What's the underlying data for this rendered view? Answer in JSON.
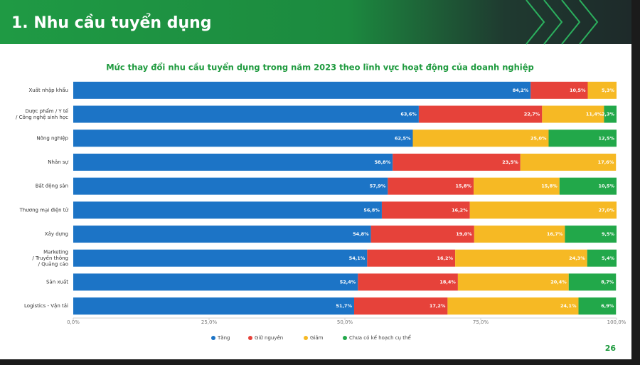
{
  "header": {
    "title": "1. Nhu cầu tuyển dụng"
  },
  "page_number": "26",
  "chart_data": {
    "type": "stacked-bar-horizontal",
    "title": "Mức thay đổi nhu cầu tuyển dụng trong năm 2023 theo lĩnh vực hoạt động của doanh nghiệp",
    "categories": [
      [
        "Xuất nhập khẩu"
      ],
      [
        "Dược phẩm / Y tế",
        "/ Công nghệ sinh học"
      ],
      [
        "Nông nghiệp"
      ],
      [
        "Nhân sự"
      ],
      [
        "Bất động sản"
      ],
      [
        "Thương mại điện tử"
      ],
      [
        "Xây dựng"
      ],
      [
        "Marketing",
        "/ Truyền thông",
        "/ Quảng cáo"
      ],
      [
        "Sản xuất"
      ],
      [
        "Logistics - Vận tải"
      ]
    ],
    "series": [
      {
        "name": "Tăng",
        "color": "#1c74c6",
        "values": [
          84.2,
          63.6,
          62.5,
          58.8,
          57.9,
          56.8,
          54.8,
          54.1,
          52.4,
          51.7
        ],
        "value_labels": [
          "84,2%",
          "63,6%",
          "62,5%",
          "58,8%",
          "57,9%",
          "56,8%",
          "54,8%",
          "54,1%",
          "52,4%",
          "51,7%"
        ]
      },
      {
        "name": "Giữ nguyên",
        "color": "#e6423a",
        "values": [
          10.5,
          22.7,
          null,
          23.5,
          15.8,
          16.2,
          19.0,
          16.2,
          18.4,
          17.2
        ],
        "value_labels": [
          "10,5%",
          "22,7%",
          null,
          "23,5%",
          "15,8%",
          "16,2%",
          "19,0%",
          "16,2%",
          "18,4%",
          "17,2%"
        ]
      },
      {
        "name": "Giảm",
        "color": "#f6b924",
        "values": [
          5.3,
          11.4,
          25.0,
          17.6,
          15.8,
          27.0,
          16.7,
          24.3,
          20.4,
          24.1
        ],
        "value_labels": [
          "5,3%",
          "11,4%",
          "25,0%",
          "17,6%",
          "15,8%",
          "27,0%",
          "16,7%",
          "24,3%",
          "20,4%",
          "24,1%"
        ]
      },
      {
        "name": "Chưa có kế hoạch cụ thể",
        "color": "#22a84a",
        "values": [
          null,
          2.3,
          12.5,
          null,
          10.5,
          null,
          9.5,
          5.4,
          8.7,
          6.9
        ],
        "value_labels": [
          null,
          "2,3%",
          "12,5%",
          null,
          "10,5%",
          null,
          "9,5%",
          "5,4%",
          "8,7%",
          "6,9%"
        ]
      }
    ],
    "xlim": [
      0,
      100
    ],
    "xticks": [
      {
        "value": 0,
        "label": "0,0%"
      },
      {
        "value": 25,
        "label": "25,0%"
      },
      {
        "value": 50,
        "label": "50,0%"
      },
      {
        "value": 75,
        "label": "75,0%"
      },
      {
        "value": 100,
        "label": "100,0%"
      }
    ],
    "legend": "bottom"
  }
}
